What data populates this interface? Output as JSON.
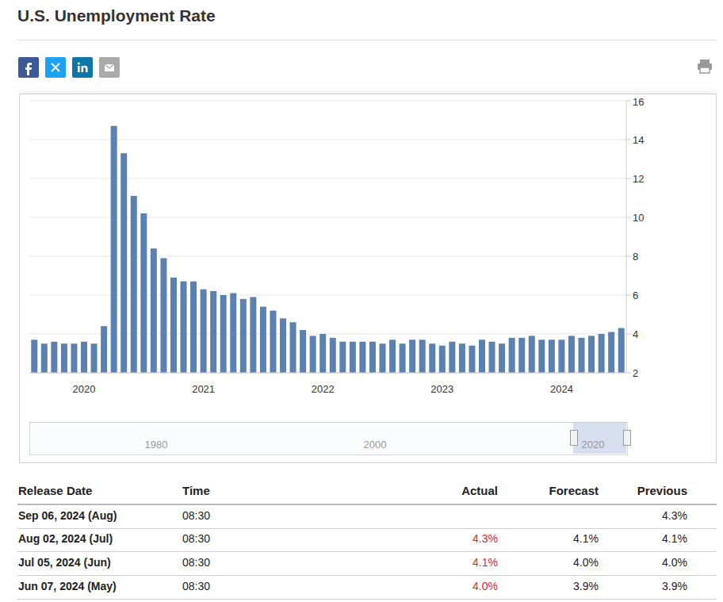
{
  "chart_data": {
    "type": "bar",
    "title": "U.S. Unemployment Rate",
    "categories": [
      null,
      null,
      null,
      null,
      null,
      "2020",
      null,
      null,
      null,
      null,
      null,
      null,
      null,
      null,
      null,
      null,
      null,
      "2021",
      null,
      null,
      null,
      null,
      null,
      null,
      null,
      null,
      null,
      null,
      null,
      "2022",
      null,
      null,
      null,
      null,
      null,
      null,
      null,
      null,
      null,
      null,
      null,
      "2023",
      null,
      null,
      null,
      null,
      null,
      null,
      null,
      null,
      null,
      null,
      null,
      "2024",
      null,
      null,
      null,
      null,
      null,
      null
    ],
    "values": [
      3.7,
      3.5,
      3.6,
      3.5,
      3.5,
      3.6,
      3.5,
      4.4,
      14.7,
      13.3,
      11.1,
      10.2,
      8.4,
      7.9,
      6.9,
      6.7,
      6.7,
      6.3,
      6.2,
      6.0,
      6.1,
      5.8,
      5.9,
      5.4,
      5.2,
      4.8,
      4.6,
      4.2,
      3.9,
      4.0,
      3.8,
      3.6,
      3.6,
      3.6,
      3.6,
      3.5,
      3.7,
      3.5,
      3.7,
      3.7,
      3.5,
      3.4,
      3.6,
      3.5,
      3.4,
      3.7,
      3.6,
      3.5,
      3.8,
      3.8,
      3.9,
      3.7,
      3.7,
      3.7,
      3.9,
      3.8,
      3.9,
      4.0,
      4.1,
      4.3
    ],
    "color": "#5b81b1",
    "ylim": [
      2,
      16
    ],
    "yticks": [
      2,
      4,
      6,
      8,
      10,
      12,
      14,
      16
    ],
    "grid": true
  },
  "navigator": {
    "labels": [
      "1980",
      "2000",
      "2020"
    ]
  },
  "table": {
    "columns": [
      "Release Date",
      "Time",
      "Actual",
      "Forecast",
      "Previous"
    ],
    "rows": [
      [
        "Sep 06, 2024 (Aug)",
        "08:30",
        null,
        null,
        "4.3%"
      ],
      [
        "Aug 02, 2024 (Jul)",
        "08:30",
        "4.3%",
        "4.1%",
        "4.1%"
      ],
      [
        "Jul 05, 2024 (Jun)",
        "08:30",
        "4.1%",
        "4.0%",
        "4.0%"
      ],
      [
        "Jun 07, 2024 (May)",
        "08:30",
        "4.0%",
        "3.9%",
        "3.9%"
      ]
    ]
  }
}
